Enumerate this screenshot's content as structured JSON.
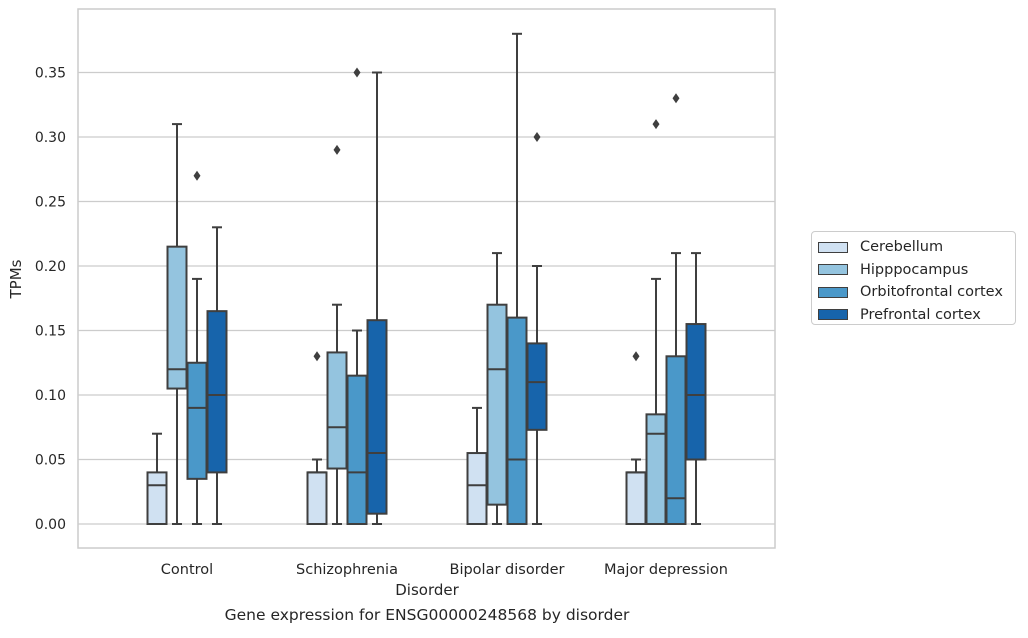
{
  "figure": {
    "caption": "Gene expression for ENSG00000248568 by disorder"
  },
  "chart_data": {
    "type": "box",
    "xlabel": "Disorder",
    "ylabel": "TPMs",
    "ylim": [
      -0.018,
      0.398
    ],
    "yticks": [
      0.0,
      0.05,
      0.1,
      0.15,
      0.2,
      0.25,
      0.3,
      0.35
    ],
    "ytick_labels": [
      "0.00",
      "0.05",
      "0.10",
      "0.15",
      "0.20",
      "0.25",
      "0.30",
      "0.35"
    ],
    "grid": "horizontal",
    "legend_placement": "right",
    "categories": [
      "Control",
      "Schizophrenia",
      "Bipolar disorder",
      "Major depression"
    ],
    "series": [
      {
        "name": "Cerebellum",
        "color": "#d0e1f2",
        "boxes": [
          {
            "whisker_low": 0.0,
            "q1": 0.0,
            "median": 0.03,
            "q3": 0.04,
            "whisker_high": 0.07,
            "outliers": []
          },
          {
            "whisker_low": 0.0,
            "q1": 0.0,
            "median": 0.04,
            "q3": 0.04,
            "whisker_high": 0.05,
            "outliers": [
              0.13
            ]
          },
          {
            "whisker_low": 0.0,
            "q1": 0.0,
            "median": 0.03,
            "q3": 0.055,
            "whisker_high": 0.09,
            "outliers": []
          },
          {
            "whisker_low": 0.0,
            "q1": 0.0,
            "median": 0.04,
            "q3": 0.04,
            "whisker_high": 0.05,
            "outliers": [
              0.13
            ]
          }
        ]
      },
      {
        "name": "Hipppocampus",
        "color": "#94c4df",
        "boxes": [
          {
            "whisker_low": 0.0,
            "q1": 0.105,
            "median": 0.12,
            "q3": 0.215,
            "whisker_high": 0.31,
            "outliers": []
          },
          {
            "whisker_low": 0.0,
            "q1": 0.043,
            "median": 0.075,
            "q3": 0.133,
            "whisker_high": 0.17,
            "outliers": [
              0.29
            ]
          },
          {
            "whisker_low": 0.0,
            "q1": 0.015,
            "median": 0.12,
            "q3": 0.17,
            "whisker_high": 0.21,
            "outliers": []
          },
          {
            "whisker_low": 0.0,
            "q1": 0.0,
            "median": 0.07,
            "q3": 0.085,
            "whisker_high": 0.19,
            "outliers": [
              0.31
            ]
          }
        ]
      },
      {
        "name": "Orbitofrontal cortex",
        "color": "#4a98c9",
        "boxes": [
          {
            "whisker_low": 0.0,
            "q1": 0.035,
            "median": 0.09,
            "q3": 0.125,
            "whisker_high": 0.19,
            "outliers": [
              0.27
            ]
          },
          {
            "whisker_low": 0.0,
            "q1": 0.0,
            "median": 0.04,
            "q3": 0.115,
            "whisker_high": 0.15,
            "outliers": [
              0.35
            ]
          },
          {
            "whisker_low": 0.0,
            "q1": 0.0,
            "median": 0.05,
            "q3": 0.16,
            "whisker_high": 0.38,
            "outliers": []
          },
          {
            "whisker_low": 0.0,
            "q1": 0.0,
            "median": 0.02,
            "q3": 0.13,
            "whisker_high": 0.21,
            "outliers": [
              0.33
            ]
          }
        ]
      },
      {
        "name": "Prefrontal cortex",
        "color": "#1764ab",
        "boxes": [
          {
            "whisker_low": 0.0,
            "q1": 0.04,
            "median": 0.1,
            "q3": 0.165,
            "whisker_high": 0.23,
            "outliers": []
          },
          {
            "whisker_low": 0.0,
            "q1": 0.008,
            "median": 0.055,
            "q3": 0.158,
            "whisker_high": 0.35,
            "outliers": []
          },
          {
            "whisker_low": 0.0,
            "q1": 0.073,
            "median": 0.11,
            "q3": 0.14,
            "whisker_high": 0.2,
            "outliers": [
              0.3
            ]
          },
          {
            "whisker_low": 0.0,
            "q1": 0.05,
            "median": 0.1,
            "q3": 0.155,
            "whisker_high": 0.21,
            "outliers": []
          }
        ]
      }
    ]
  }
}
